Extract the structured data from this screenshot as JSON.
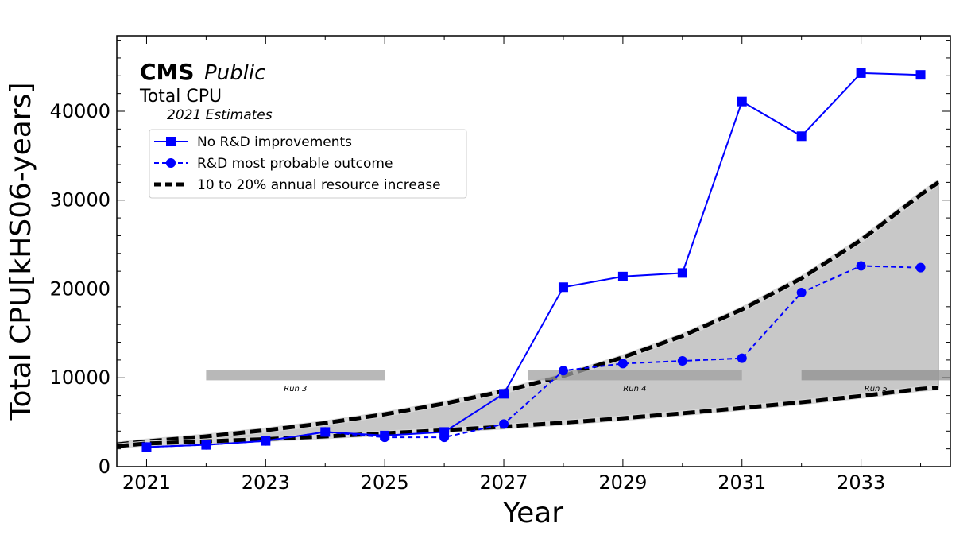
{
  "chart_data": {
    "type": "line",
    "title": "Total CPU",
    "experiment": "CMS",
    "status": "Public",
    "subtitle": "2021 Estimates",
    "xlabel": "Year",
    "ylabel": "Total CPU[kHS06-years]",
    "xlim": [
      2020.5,
      2034.5
    ],
    "ylim": [
      0,
      48500
    ],
    "xticks": [
      2021,
      2023,
      2025,
      2027,
      2029,
      2031,
      2033
    ],
    "yticks": [
      0,
      10000,
      20000,
      30000,
      40000
    ],
    "series": [
      {
        "name": "No R&D improvements",
        "marker": "square",
        "linestyle": "solid",
        "color": "#0000ff",
        "x": [
          2021,
          2022,
          2023,
          2024,
          2025,
          2026,
          2027,
          2028,
          2029,
          2030,
          2031,
          2032,
          2033,
          2034
        ],
        "values": [
          2200,
          2450,
          2900,
          3900,
          3500,
          3900,
          8200,
          20200,
          21400,
          21800,
          41100,
          37200,
          44300,
          44100
        ]
      },
      {
        "name": "R&D most probable outcome",
        "marker": "circle",
        "linestyle": "dashed",
        "color": "#0000ff",
        "x": [
          2021,
          2022,
          2023,
          2024,
          2025,
          2026,
          2027,
          2028,
          2029,
          2030,
          2031,
          2032,
          2033,
          2034
        ],
        "values": [
          2200,
          2450,
          2900,
          3900,
          3300,
          3300,
          4800,
          10800,
          11600,
          11900,
          12200,
          19600,
          22600,
          22400
        ]
      }
    ],
    "band": {
      "name": "10 to 20% annual resource increase",
      "color": "#000000",
      "fill": "#c8c8c8",
      "x": [
        2020.5,
        2021,
        2022,
        2023,
        2024,
        2025,
        2026,
        2027,
        2028,
        2029,
        2030,
        2031,
        2032,
        2033,
        2034,
        2034.3
      ],
      "upper": [
        2500,
        2850,
        3400,
        4100,
        4900,
        5900,
        7100,
        8500,
        10200,
        12300,
        14700,
        17700,
        21200,
        25500,
        30600,
        32000
      ],
      "lower": [
        2300,
        2600,
        2850,
        3100,
        3400,
        3750,
        4100,
        4500,
        4950,
        5450,
        6000,
        6600,
        7250,
        7950,
        8750,
        8900
      ]
    },
    "runs": [
      {
        "label": "Run 3",
        "start": 2022,
        "end": 2025,
        "y": 10300,
        "color": "#a0a0a0"
      },
      {
        "label": "Run 4",
        "start": 2027.4,
        "end": 2031,
        "y": 10300,
        "color": "#a0a0a0"
      },
      {
        "label": "Run 5",
        "start": 2032,
        "end": 2034.6,
        "y": 10300,
        "color": "#909090"
      }
    ],
    "legend": {
      "position": "upper-left",
      "entries": [
        "No R&D improvements",
        "R&D most probable outcome",
        "10 to 20% annual resource increase"
      ]
    }
  }
}
